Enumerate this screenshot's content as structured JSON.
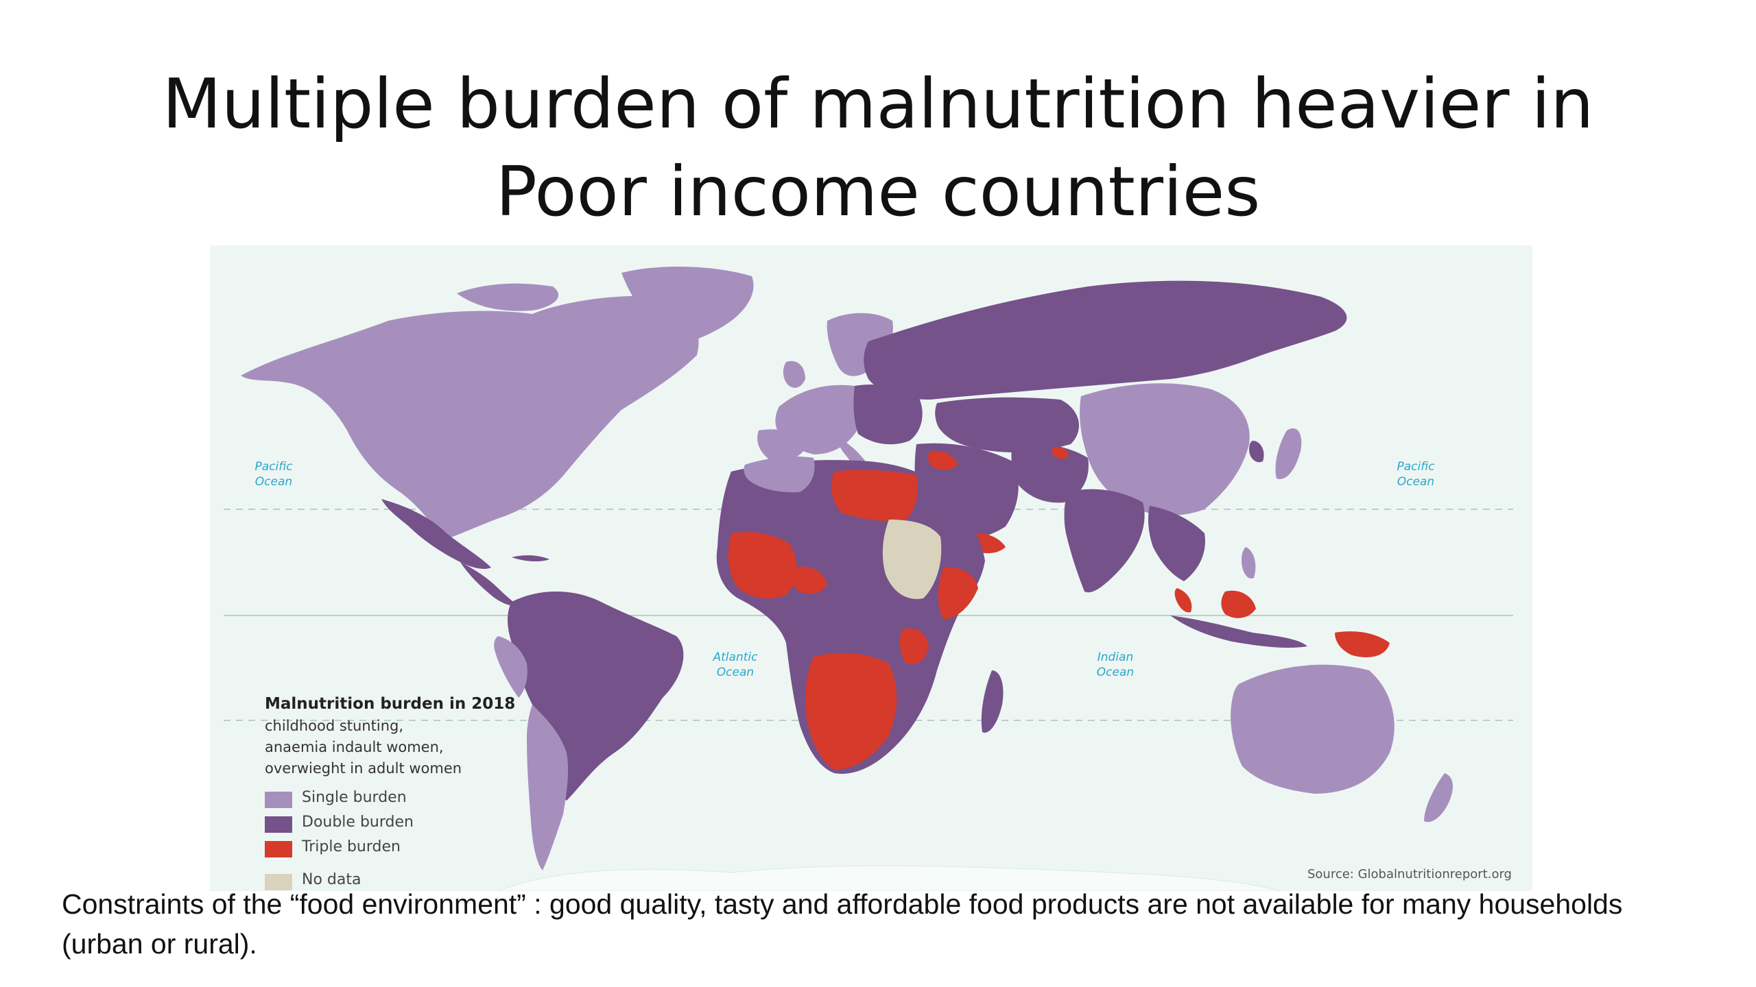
{
  "slide": {
    "title_line1": "Multiple burden of malnutrition heavier in",
    "title_line2": "Poor income countries",
    "caption": "Constraints of the “food environment” : good quality, tasty and affordable food products are not available for many households (urban or rural)."
  },
  "map": {
    "oceans": {
      "pacific_left": [
        "Pacific",
        "Ocean"
      ],
      "pacific_right": [
        "Pacific",
        "Ocean"
      ],
      "atlantic": [
        "Atlantic",
        "Ocean"
      ],
      "indian": [
        "Indian",
        "Ocean"
      ]
    },
    "legend": {
      "title": "Malnutrition burden in 2018",
      "subtitle_lines": [
        "childhood stunting,",
        "anaemia indault women,",
        "overwieght in adult women"
      ],
      "items": [
        {
          "label": "Single burden",
          "color": "#a68fbd"
        },
        {
          "label": "Double burden",
          "color": "#75528a"
        },
        {
          "label": "Triple burden",
          "color": "#d63a2a"
        },
        {
          "label": "No data",
          "color": "#d9d3bd"
        }
      ]
    },
    "source": "Source: Globalnutritionreport.org",
    "colors": {
      "ocean": "#eef6f4",
      "single": "#a68fbd",
      "double": "#75528a",
      "triple": "#d63a2a",
      "nodata": "#d9d3bd"
    }
  }
}
